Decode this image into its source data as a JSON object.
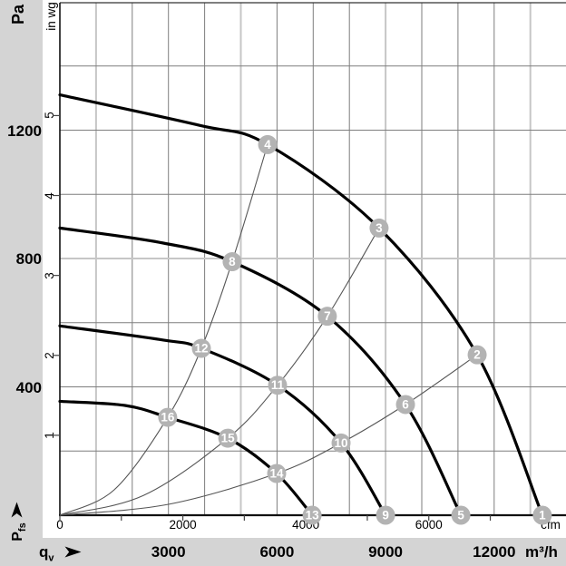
{
  "chart_data": {
    "type": "line",
    "title": "",
    "labels": {
      "y_left_unit": "Pa",
      "y_right_unit": "in wg",
      "y_bottom_axis_base": "P",
      "y_bottom_axis_sub": "fs",
      "x_axis_base": "q",
      "x_axis_sub": "v",
      "x_metric_unit": "m³/h",
      "x_imperial_unit": "cfm"
    },
    "axes": {
      "x_metric": {
        "tick_labels": [
          3000,
          6000,
          9000,
          12000
        ],
        "grid_step": 1000,
        "grid_max": 13000,
        "light_lines": [
          1000,
          5000,
          9000,
          13000
        ]
      },
      "x_imperial": {
        "tick_labels": [
          0,
          2000,
          4000,
          6000
        ],
        "tick_step": 1000,
        "tick_count": 8
      },
      "y_metric": {
        "tick_labels": [
          400,
          800,
          1200
        ],
        "grid_step": 200,
        "grid_max": 1400,
        "light_lines": [
          800
        ]
      },
      "y_imperial": {
        "tick_labels": [
          1,
          2,
          3,
          4,
          5
        ]
      }
    },
    "fan_curves": [
      {
        "name": "fan-curve-1",
        "points_q_pa": [
          [
            0,
            1310
          ],
          [
            3860,
            1215
          ],
          [
            5740,
            1155
          ],
          [
            8820,
            895
          ],
          [
            11530,
            500
          ],
          [
            13330,
            0
          ]
        ]
      },
      {
        "name": "fan-curve-2",
        "points_q_pa": [
          [
            0,
            895
          ],
          [
            2860,
            848
          ],
          [
            4760,
            790
          ],
          [
            7390,
            620
          ],
          [
            9550,
            345
          ],
          [
            11080,
            0
          ]
        ]
      },
      {
        "name": "fan-curve-3",
        "points_q_pa": [
          [
            0,
            590
          ],
          [
            2860,
            546
          ],
          [
            3910,
            520
          ],
          [
            6015,
            405
          ],
          [
            7770,
            225
          ],
          [
            9000,
            0
          ]
        ]
      },
      {
        "name": "fan-curve-4",
        "points_q_pa": [
          [
            0,
            355
          ],
          [
            1800,
            342
          ],
          [
            2980,
            305
          ],
          [
            4640,
            240
          ],
          [
            5990,
            130
          ],
          [
            6970,
            0
          ]
        ]
      }
    ],
    "system_curves": [
      {
        "name": "system-curve-a",
        "points_q_pa": [
          [
            0,
            0
          ],
          [
            1500,
            79
          ],
          [
            2980,
            305
          ],
          [
            3910,
            520
          ],
          [
            4760,
            790
          ],
          [
            5740,
            1155
          ]
        ]
      },
      {
        "name": "system-curve-b",
        "points_q_pa": [
          [
            0,
            0
          ],
          [
            2300,
            61
          ],
          [
            4640,
            240
          ],
          [
            6015,
            405
          ],
          [
            7390,
            620
          ],
          [
            8820,
            895
          ]
        ]
      },
      {
        "name": "system-curve-c",
        "points_q_pa": [
          [
            0,
            0
          ],
          [
            3000,
            34
          ],
          [
            5990,
            130
          ],
          [
            7770,
            225
          ],
          [
            9550,
            345
          ],
          [
            11530,
            500
          ]
        ]
      }
    ],
    "operating_points": [
      {
        "id": "1",
        "curve": 1,
        "q_m3h": 13330,
        "p_pa": 0
      },
      {
        "id": "2",
        "curve": 1,
        "q_m3h": 11530,
        "p_pa": 500
      },
      {
        "id": "3",
        "curve": 1,
        "q_m3h": 8820,
        "p_pa": 895
      },
      {
        "id": "4",
        "curve": 1,
        "q_m3h": 5740,
        "p_pa": 1155
      },
      {
        "id": "5",
        "curve": 2,
        "q_m3h": 11080,
        "p_pa": 0
      },
      {
        "id": "6",
        "curve": 2,
        "q_m3h": 9550,
        "p_pa": 345
      },
      {
        "id": "7",
        "curve": 2,
        "q_m3h": 7390,
        "p_pa": 620
      },
      {
        "id": "8",
        "curve": 2,
        "q_m3h": 4760,
        "p_pa": 790
      },
      {
        "id": "9",
        "curve": 3,
        "q_m3h": 9000,
        "p_pa": 0
      },
      {
        "id": "10",
        "curve": 3,
        "q_m3h": 7770,
        "p_pa": 225
      },
      {
        "id": "11",
        "curve": 3,
        "q_m3h": 6015,
        "p_pa": 405
      },
      {
        "id": "12",
        "curve": 3,
        "q_m3h": 3910,
        "p_pa": 520
      },
      {
        "id": "13",
        "curve": 4,
        "q_m3h": 6970,
        "p_pa": 0
      },
      {
        "id": "14",
        "curve": 4,
        "q_m3h": 5990,
        "p_pa": 130
      },
      {
        "id": "15",
        "curve": 4,
        "q_m3h": 4640,
        "p_pa": 240
      },
      {
        "id": "16",
        "curve": 4,
        "q_m3h": 2980,
        "p_pa": 305
      }
    ],
    "colors": {
      "band_gray": "#d4d4d4",
      "grid_minor": "#7e7e7e",
      "grid_light": "#c6c6c6",
      "border": "#333333",
      "axis": "#111111",
      "fan_curve": "#000000",
      "system_curve": "#555555",
      "marker_fill": "#b3b3b3",
      "marker_text": "#ffffff",
      "tick": "#444444"
    }
  }
}
